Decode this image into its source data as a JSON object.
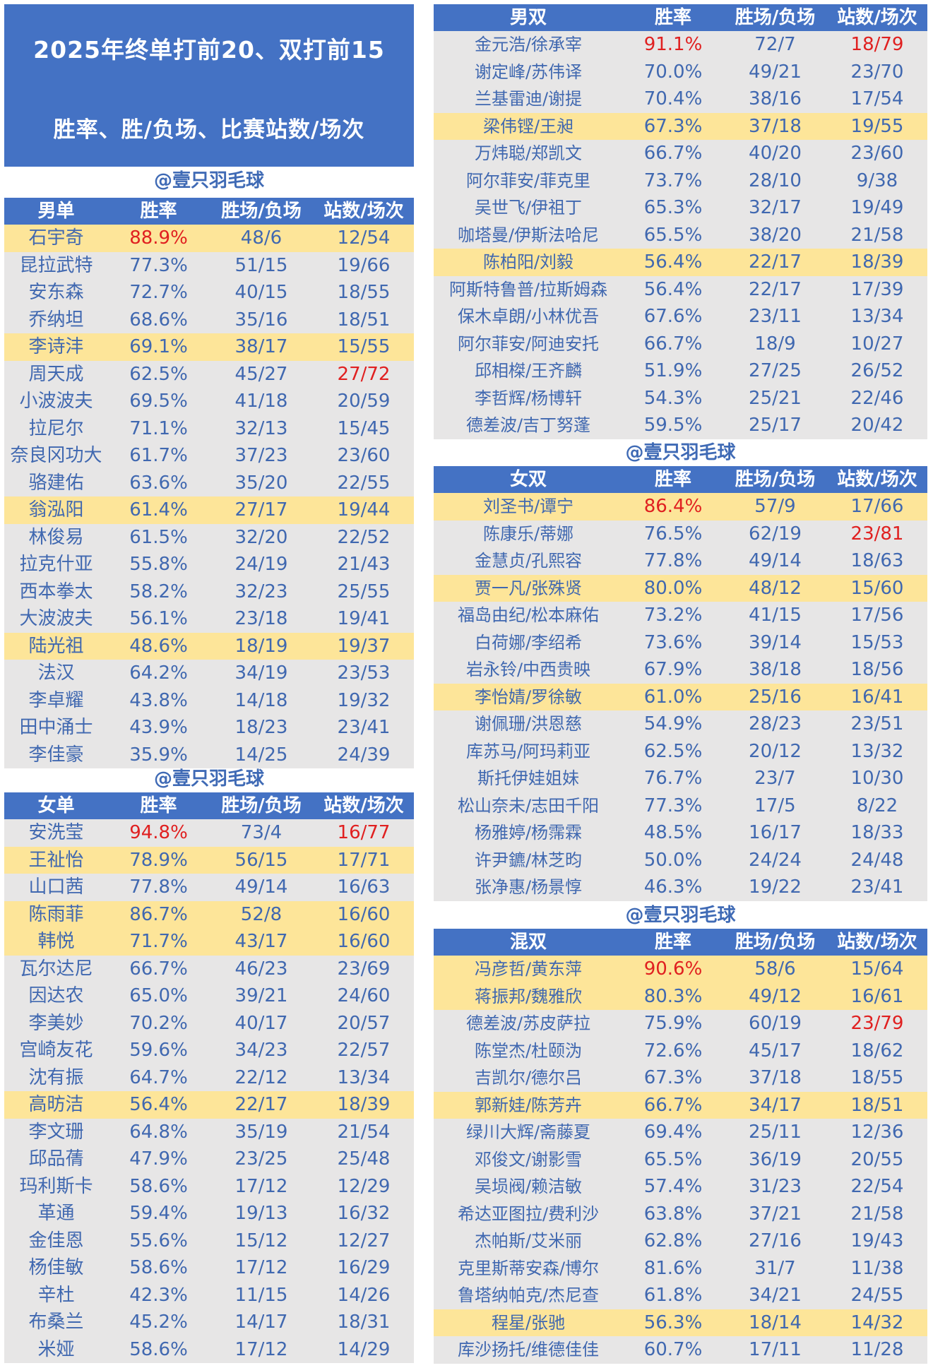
{
  "title": {
    "line1": "2025年终单打前20、双打前15",
    "line2": "胜率、胜/负场、比赛站数/场次"
  },
  "watermark": "@壹只羽毛球",
  "colors": {
    "header_bg": "#4472c4",
    "row_bg": "#e7e6e6",
    "highlight_bg": "#fde599",
    "text": "#4068b0",
    "red": "#e02020"
  },
  "tables": {
    "ms": {
      "headers": [
        "男单",
        "胜率",
        "胜场/负场",
        "站数/场次"
      ],
      "rows": [
        {
          "name": "石宇奇",
          "rate": "88.9%",
          "wl": "48/6",
          "events": "12/54",
          "hl": true,
          "red_rate": true
        },
        {
          "name": "昆拉武特",
          "rate": "77.3%",
          "wl": "51/15",
          "events": "19/66"
        },
        {
          "name": "安东森",
          "rate": "72.7%",
          "wl": "40/15",
          "events": "18/55"
        },
        {
          "name": "乔纳坦",
          "rate": "68.6%",
          "wl": "35/16",
          "events": "18/51"
        },
        {
          "name": "李诗沣",
          "rate": "69.1%",
          "wl": "38/17",
          "events": "15/55",
          "hl": true
        },
        {
          "name": "周天成",
          "rate": "62.5%",
          "wl": "45/27",
          "events": "27/72",
          "red_events": true
        },
        {
          "name": "小波波夫",
          "rate": "69.5%",
          "wl": "41/18",
          "events": "20/59"
        },
        {
          "name": "拉尼尔",
          "rate": "71.1%",
          "wl": "32/13",
          "events": "15/45"
        },
        {
          "name": "奈良冈功大",
          "rate": "61.7%",
          "wl": "37/23",
          "events": "23/60"
        },
        {
          "name": "骆建佑",
          "rate": "63.6%",
          "wl": "35/20",
          "events": "22/55"
        },
        {
          "name": "翁泓阳",
          "rate": "61.4%",
          "wl": "27/17",
          "events": "19/44",
          "hl": true
        },
        {
          "name": "林俊易",
          "rate": "61.5%",
          "wl": "32/20",
          "events": "22/52"
        },
        {
          "name": "拉克什亚",
          "rate": "55.8%",
          "wl": "24/19",
          "events": "21/43"
        },
        {
          "name": "西本拳太",
          "rate": "58.2%",
          "wl": "32/23",
          "events": "25/55"
        },
        {
          "name": "大波波夫",
          "rate": "56.1%",
          "wl": "23/18",
          "events": "19/41"
        },
        {
          "name": "陆光祖",
          "rate": "48.6%",
          "wl": "18/19",
          "events": "19/37",
          "hl": true
        },
        {
          "name": "法汉",
          "rate": "64.2%",
          "wl": "34/19",
          "events": "23/53"
        },
        {
          "name": "李卓耀",
          "rate": "43.8%",
          "wl": "14/18",
          "events": "19/32"
        },
        {
          "name": "田中涌士",
          "rate": "43.9%",
          "wl": "18/23",
          "events": "23/41"
        },
        {
          "name": "李佳豪",
          "rate": "35.9%",
          "wl": "14/25",
          "events": "24/39"
        }
      ]
    },
    "ws": {
      "headers": [
        "女单",
        "胜率",
        "胜场/负场",
        "站数/场次"
      ],
      "rows": [
        {
          "name": "安洗莹",
          "rate": "94.8%",
          "wl": "73/4",
          "events": "16/77",
          "red_rate": true,
          "red_events": true
        },
        {
          "name": "王祉怡",
          "rate": "78.9%",
          "wl": "56/15",
          "events": "17/71",
          "hl": true
        },
        {
          "name": "山口茜",
          "rate": "77.8%",
          "wl": "49/14",
          "events": "16/63"
        },
        {
          "name": "陈雨菲",
          "rate": "86.7%",
          "wl": "52/8",
          "events": "16/60",
          "hl": true
        },
        {
          "name": "韩悦",
          "rate": "71.7%",
          "wl": "43/17",
          "events": "16/60",
          "hl": true
        },
        {
          "name": "瓦尔达尼",
          "rate": "66.7%",
          "wl": "46/23",
          "events": "23/69"
        },
        {
          "name": "因达农",
          "rate": "65.0%",
          "wl": "39/21",
          "events": "24/60"
        },
        {
          "name": "李美妙",
          "rate": "70.2%",
          "wl": "40/17",
          "events": "20/57"
        },
        {
          "name": "宫崎友花",
          "rate": "59.6%",
          "wl": "34/23",
          "events": "22/57"
        },
        {
          "name": "沈有振",
          "rate": "64.7%",
          "wl": "22/12",
          "events": "13/34"
        },
        {
          "name": "高昉洁",
          "rate": "56.4%",
          "wl": "22/17",
          "events": "18/39",
          "hl": true
        },
        {
          "name": "李文珊",
          "rate": "64.8%",
          "wl": "35/19",
          "events": "21/54"
        },
        {
          "name": "邱品蒨",
          "rate": "47.9%",
          "wl": "23/25",
          "events": "25/48"
        },
        {
          "name": "玛利斯卡",
          "rate": "58.6%",
          "wl": "17/12",
          "events": "12/29"
        },
        {
          "name": "革通",
          "rate": "59.4%",
          "wl": "19/13",
          "events": "16/32"
        },
        {
          "name": "金佳恩",
          "rate": "55.6%",
          "wl": "15/12",
          "events": "12/27"
        },
        {
          "name": "杨佳敏",
          "rate": "58.6%",
          "wl": "17/12",
          "events": "16/29"
        },
        {
          "name": "辛杜",
          "rate": "42.3%",
          "wl": "11/15",
          "events": "14/26"
        },
        {
          "name": "布桑兰",
          "rate": "45.2%",
          "wl": "14/17",
          "events": "18/31"
        },
        {
          "name": "米娅",
          "rate": "58.6%",
          "wl": "17/12",
          "events": "14/29"
        }
      ]
    },
    "md": {
      "headers": [
        "男双",
        "胜率",
        "胜场/负场",
        "站数/场次"
      ],
      "rows": [
        {
          "name": "金元浩/徐承宰",
          "rate": "91.1%",
          "wl": "72/7",
          "events": "18/79",
          "red_rate": true,
          "red_events": true
        },
        {
          "name": "谢定峰/苏伟译",
          "rate": "70.0%",
          "wl": "49/21",
          "events": "23/70"
        },
        {
          "name": "兰基雷迪/谢提",
          "rate": "70.4%",
          "wl": "38/16",
          "events": "17/54"
        },
        {
          "name": "梁伟铿/王昶",
          "rate": "67.3%",
          "wl": "37/18",
          "events": "19/55",
          "hl": true
        },
        {
          "name": "万炜聪/郑凯文",
          "rate": "66.7%",
          "wl": "40/20",
          "events": "23/60"
        },
        {
          "name": "阿尔菲安/菲克里",
          "rate": "73.7%",
          "wl": "28/10",
          "events": "9/38"
        },
        {
          "name": "吴世飞/伊祖丁",
          "rate": "65.3%",
          "wl": "32/17",
          "events": "19/49"
        },
        {
          "name": "咖塔曼/伊斯法哈尼",
          "rate": "65.5%",
          "wl": "38/20",
          "events": "21/58"
        },
        {
          "name": "陈柏阳/刘毅",
          "rate": "56.4%",
          "wl": "22/17",
          "events": "18/39",
          "hl": true
        },
        {
          "name": "阿斯特鲁普/拉斯姆森",
          "rate": "56.4%",
          "wl": "22/17",
          "events": "17/39"
        },
        {
          "name": "保木卓朗/小林优吾",
          "rate": "67.6%",
          "wl": "23/11",
          "events": "13/34"
        },
        {
          "name": "阿尔菲安/阿迪安托",
          "rate": "66.7%",
          "wl": "18/9",
          "events": "10/27"
        },
        {
          "name": "邱相榤/王齐麟",
          "rate": "51.9%",
          "wl": "27/25",
          "events": "26/52"
        },
        {
          "name": "李哲辉/杨博轩",
          "rate": "54.3%",
          "wl": "25/21",
          "events": "22/46"
        },
        {
          "name": "德差波/吉丁努蓬",
          "rate": "59.5%",
          "wl": "25/17",
          "events": "20/42"
        }
      ]
    },
    "wd": {
      "headers": [
        "女双",
        "胜率",
        "胜场/负场",
        "站数/场次"
      ],
      "rows": [
        {
          "name": "刘圣书/谭宁",
          "rate": "86.4%",
          "wl": "57/9",
          "events": "17/66",
          "hl": true,
          "red_rate": true
        },
        {
          "name": "陈康乐/蒂娜",
          "rate": "76.5%",
          "wl": "62/19",
          "events": "23/81",
          "red_events": true
        },
        {
          "name": "金慧贞/孔熙容",
          "rate": "77.8%",
          "wl": "49/14",
          "events": "18/63"
        },
        {
          "name": "贾一凡/张殊贤",
          "rate": "80.0%",
          "wl": "48/12",
          "events": "15/60",
          "hl": true
        },
        {
          "name": "福岛由纪/松本麻佑",
          "rate": "73.2%",
          "wl": "41/15",
          "events": "17/56"
        },
        {
          "name": "白荷娜/李绍希",
          "rate": "73.6%",
          "wl": "39/14",
          "events": "15/53"
        },
        {
          "name": "岩永铃/中西贵映",
          "rate": "67.9%",
          "wl": "38/18",
          "events": "18/56"
        },
        {
          "name": "李怡婧/罗徐敏",
          "rate": "61.0%",
          "wl": "25/16",
          "events": "16/41",
          "hl": true
        },
        {
          "name": "谢佩珊/洪恩慈",
          "rate": "54.9%",
          "wl": "28/23",
          "events": "23/51"
        },
        {
          "name": "库苏马/阿玛莉亚",
          "rate": "62.5%",
          "wl": "20/12",
          "events": "13/32"
        },
        {
          "name": "斯托伊娃姐妹",
          "rate": "76.7%",
          "wl": "23/7",
          "events": "10/30"
        },
        {
          "name": "松山奈未/志田千阳",
          "rate": "77.3%",
          "wl": "17/5",
          "events": "8/22"
        },
        {
          "name": "杨雅婷/杨霈霖",
          "rate": "48.5%",
          "wl": "16/17",
          "events": "18/33"
        },
        {
          "name": "许尹鑣/林芝昀",
          "rate": "50.0%",
          "wl": "24/24",
          "events": "24/48"
        },
        {
          "name": "张净惠/杨景惇",
          "rate": "46.3%",
          "wl": "19/22",
          "events": "23/41"
        }
      ]
    },
    "xd": {
      "headers": [
        "混双",
        "胜率",
        "胜场/负场",
        "站数/场次"
      ],
      "rows": [
        {
          "name": "冯彦哲/黄东萍",
          "rate": "90.6%",
          "wl": "58/6",
          "events": "15/64",
          "hl": true,
          "red_rate": true
        },
        {
          "name": "蒋振邦/魏雅欣",
          "rate": "80.3%",
          "wl": "49/12",
          "events": "16/61",
          "hl": true
        },
        {
          "name": "德差波/苏皮萨拉",
          "rate": "75.9%",
          "wl": "60/19",
          "events": "23/79",
          "red_events": true
        },
        {
          "name": "陈堂杰/杜颐沩",
          "rate": "72.6%",
          "wl": "45/17",
          "events": "18/62"
        },
        {
          "name": "吉凯尔/德尔吕",
          "rate": "67.3%",
          "wl": "37/18",
          "events": "18/55"
        },
        {
          "name": "郭新娃/陈芳卉",
          "rate": "66.7%",
          "wl": "34/17",
          "events": "18/51",
          "hl": true
        },
        {
          "name": "绿川大辉/斋藤夏",
          "rate": "69.4%",
          "wl": "25/11",
          "events": "12/36"
        },
        {
          "name": "邓俊文/谢影雪",
          "rate": "65.5%",
          "wl": "36/19",
          "events": "20/55"
        },
        {
          "name": "吴埙阀/赖洁敏",
          "rate": "57.4%",
          "wl": "31/23",
          "events": "22/54"
        },
        {
          "name": "希达亚图拉/费利沙",
          "rate": "63.8%",
          "wl": "37/21",
          "events": "21/58"
        },
        {
          "name": "杰帕斯/艾米丽",
          "rate": "62.8%",
          "wl": "27/16",
          "events": "19/43"
        },
        {
          "name": "克里斯蒂安森/博尔",
          "rate": "81.6%",
          "wl": "31/7",
          "events": "11/38"
        },
        {
          "name": "鲁塔纳帕克/杰尼查",
          "rate": "61.8%",
          "wl": "34/21",
          "events": "24/55"
        },
        {
          "name": "程星/张驰",
          "rate": "56.3%",
          "wl": "18/14",
          "events": "14/32",
          "hl": true
        },
        {
          "name": "库沙扬托/维德佳佳",
          "rate": "60.7%",
          "wl": "17/11",
          "events": "11/28"
        }
      ]
    }
  }
}
